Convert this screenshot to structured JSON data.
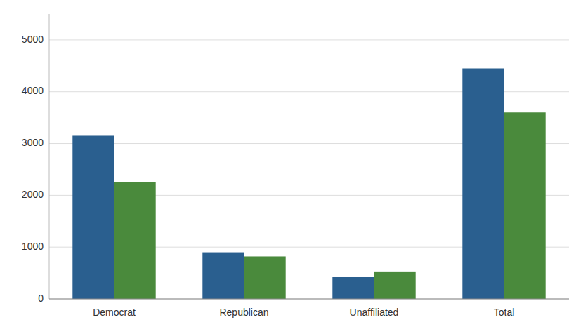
{
  "chart_data": {
    "type": "bar",
    "categories": [
      "Democrat",
      "Republican",
      "Unaffiliated",
      "Total"
    ],
    "series": [
      {
        "color": "#2A5F8F",
        "values": [
          3150,
          900,
          420,
          4450
        ]
      },
      {
        "color": "#4A8A3C",
        "values": [
          2250,
          820,
          530,
          3600
        ]
      }
    ],
    "ylim": [
      0,
      5500
    ],
    "yticks": [
      0,
      1000,
      2000,
      3000,
      4000,
      5000
    ],
    "grid": true
  }
}
